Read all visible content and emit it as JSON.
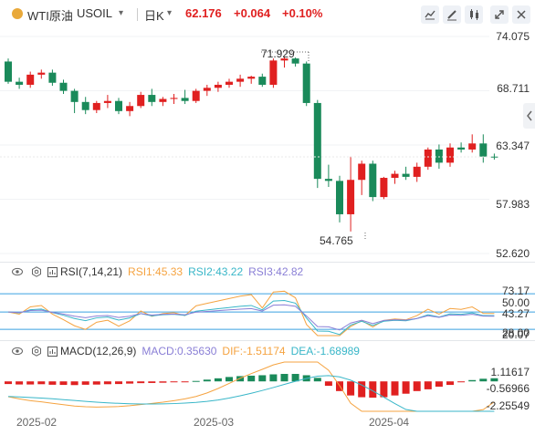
{
  "header": {
    "symbol": "WTI原油",
    "code": "USOIL",
    "code_arrow": "▾",
    "period": "日K",
    "period_arrow": "▾",
    "price": "62.176",
    "change": "+0.064",
    "change_pct": "+0.10%",
    "color_up": "#e02020",
    "tools": [
      "line-tool-icon",
      "pen-tool-icon",
      "candle-settings-icon",
      "fullscreen-icon",
      "close-icon"
    ]
  },
  "main_chart": {
    "price_labels": [
      "74.075",
      "68.711",
      "63.347",
      "57.983",
      "52.620"
    ],
    "high_annotation": "71.929",
    "low_annotation": "54.765",
    "colors": {
      "up": "#e02020",
      "down": "#1a8a5a"
    }
  },
  "rsi": {
    "title": "RSI(7,14,21)",
    "rsi1": "RSI1:45.33",
    "rsi2": "RSI2:43.22",
    "rsi3": "RSI3:42.82",
    "axis_labels": [
      "73.17",
      "50.00",
      "43.27",
      "28.00",
      "20.07"
    ],
    "colors": {
      "rsi1": "#f5a340",
      "rsi2": "#38b6c8",
      "rsi3": "#8a7fd6",
      "level": "#3aa0e0"
    }
  },
  "macd": {
    "title": "MACD(12,26,9)",
    "macd": "MACD:0.35630",
    "dif": "DIF:-1.51174",
    "dea": "DEA:-1.68989",
    "axis_labels": [
      "1.11617",
      "-0.56966",
      "-2.25549"
    ],
    "colors": {
      "macd": "#8a7fd6",
      "dif": "#f5a340",
      "dea": "#38b6c8"
    }
  },
  "x_axis": {
    "dates": [
      "2025-02",
      "2025-03",
      "2025-04"
    ]
  },
  "chart_data": {
    "type": "candlestick",
    "price_range": [
      52.62,
      74.075
    ],
    "candles": [
      [
        71.6,
        71.9,
        69.4,
        69.6
      ],
      [
        69.6,
        70.0,
        68.9,
        69.3
      ],
      [
        69.3,
        70.6,
        69.0,
        70.3
      ],
      [
        70.3,
        70.8,
        69.9,
        70.5
      ],
      [
        70.5,
        70.8,
        69.2,
        69.5
      ],
      [
        69.5,
        69.8,
        68.4,
        68.7
      ],
      [
        68.7,
        68.9,
        66.5,
        67.6
      ],
      [
        67.6,
        68.1,
        66.4,
        66.8
      ],
      [
        66.8,
        67.7,
        66.5,
        67.5
      ],
      [
        67.5,
        68.3,
        67.0,
        67.7
      ],
      [
        67.7,
        68.0,
        66.4,
        66.7
      ],
      [
        66.7,
        67.6,
        66.2,
        67.2
      ],
      [
        67.2,
        68.6,
        67.0,
        68.3
      ],
      [
        68.3,
        68.9,
        67.2,
        67.6
      ],
      [
        67.6,
        68.1,
        67.2,
        67.9
      ],
      [
        67.9,
        68.4,
        67.4,
        68.0
      ],
      [
        68.0,
        68.8,
        67.4,
        67.7
      ],
      [
        67.7,
        68.9,
        67.5,
        68.7
      ],
      [
        68.7,
        69.3,
        68.2,
        69.0
      ],
      [
        69.0,
        69.6,
        68.6,
        69.3
      ],
      [
        69.3,
        69.9,
        69.0,
        69.6
      ],
      [
        69.6,
        70.3,
        69.1,
        69.9
      ],
      [
        69.9,
        70.2,
        69.4,
        70.1
      ],
      [
        70.1,
        70.4,
        69.1,
        69.3
      ],
      [
        69.3,
        71.9,
        69.0,
        71.7
      ],
      [
        71.7,
        72.1,
        71.0,
        71.9
      ],
      [
        71.9,
        72.0,
        71.1,
        71.4
      ],
      [
        71.4,
        71.6,
        67.2,
        67.5
      ],
      [
        67.5,
        67.8,
        59.1,
        60.0
      ],
      [
        60.0,
        61.4,
        59.2,
        59.8
      ],
      [
        59.8,
        60.3,
        55.7,
        56.5
      ],
      [
        56.5,
        62.2,
        54.8,
        59.9
      ],
      [
        59.9,
        61.8,
        58.4,
        61.5
      ],
      [
        61.5,
        61.8,
        57.8,
        58.2
      ],
      [
        58.2,
        60.2,
        58.0,
        60.1
      ],
      [
        60.1,
        60.8,
        59.5,
        60.5
      ],
      [
        60.5,
        61.2,
        59.9,
        60.2
      ],
      [
        60.2,
        61.6,
        59.7,
        61.2
      ],
      [
        61.2,
        63.1,
        60.9,
        62.9
      ],
      [
        62.9,
        63.4,
        61.0,
        61.6
      ],
      [
        61.6,
        63.5,
        61.2,
        63.1
      ],
      [
        63.1,
        63.6,
        62.6,
        62.9
      ],
      [
        62.9,
        64.4,
        62.6,
        63.5
      ],
      [
        63.5,
        64.4,
        61.6,
        62.2
      ],
      [
        62.2,
        62.5,
        61.9,
        62.176
      ]
    ],
    "rsi_levels": [
      73.17,
      50.0,
      28.0
    ],
    "rsi_range": [
      20.07,
      86.0
    ],
    "macd_range": [
      -3.4,
      2.2
    ],
    "macd_hist": [
      -0.3,
      -0.35,
      -0.35,
      -0.32,
      -0.38,
      -0.4,
      -0.42,
      -0.38,
      -0.36,
      -0.32,
      -0.3,
      -0.25,
      -0.2,
      -0.18,
      -0.15,
      -0.1,
      -0.05,
      0.05,
      0.2,
      0.35,
      0.5,
      0.6,
      0.65,
      0.7,
      0.8,
      0.85,
      0.85,
      0.7,
      0.4,
      -0.5,
      -1.1,
      -1.6,
      -1.8,
      -1.85,
      -1.8,
      -1.6,
      -1.4,
      -1.1,
      -0.9,
      -0.6,
      -0.4,
      -0.1,
      0.15,
      0.3,
      0.356
    ]
  }
}
